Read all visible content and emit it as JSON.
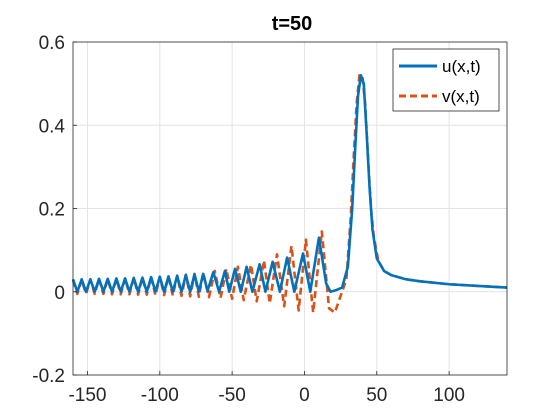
{
  "chart_data": {
    "type": "line",
    "title": "t=50",
    "xlabel": "",
    "ylabel": "",
    "xlim": [
      -160,
      140
    ],
    "ylim": [
      -0.2,
      0.6
    ],
    "xticks": [
      -150,
      -100,
      -50,
      0,
      50,
      100
    ],
    "xtick_labels": [
      "-150",
      "-100",
      "-50",
      "0",
      "50",
      "100"
    ],
    "yticks": [
      -0.2,
      0,
      0.2,
      0.4,
      0.6
    ],
    "ytick_labels": [
      "-0.2",
      "0",
      "0.2",
      "0.4",
      "0.6"
    ],
    "grid": true,
    "legend_position": "top-right",
    "series": [
      {
        "name": "u(x,t)",
        "color": "#0072BD",
        "style": "solid",
        "values": [
          [
            -160,
            0.03
          ],
          [
            -157,
            0.0
          ],
          [
            -154,
            0.03
          ],
          [
            -151,
            0.0
          ],
          [
            -148,
            0.03
          ],
          [
            -145,
            0.0
          ],
          [
            -142,
            0.031
          ],
          [
            -139,
            0.0
          ],
          [
            -136,
            0.031
          ],
          [
            -133,
            0.0
          ],
          [
            -130,
            0.032
          ],
          [
            -127,
            0.0
          ],
          [
            -124,
            0.032
          ],
          [
            -121,
            0.0
          ],
          [
            -118,
            0.033
          ],
          [
            -115,
            0.0
          ],
          [
            -112,
            0.034
          ],
          [
            -109,
            0.0
          ],
          [
            -106,
            0.035
          ],
          [
            -103,
            0.0
          ],
          [
            -100,
            0.036
          ],
          [
            -97,
            0.0
          ],
          [
            -94,
            0.037
          ],
          [
            -91,
            0.0
          ],
          [
            -88,
            0.038
          ],
          [
            -85,
            0.0
          ],
          [
            -82,
            0.04
          ],
          [
            -79,
            0.0
          ],
          [
            -76,
            0.042
          ],
          [
            -73,
            0.0
          ],
          [
            -70,
            0.043
          ],
          [
            -67,
            0.002
          ],
          [
            -63,
            0.047
          ],
          [
            -59,
            0.0
          ],
          [
            -55,
            0.05
          ],
          [
            -52,
            0.0
          ],
          [
            -48,
            0.055
          ],
          [
            -44,
            0.0
          ],
          [
            -40,
            0.06
          ],
          [
            -36,
            0.0
          ],
          [
            -31,
            0.066
          ],
          [
            -27,
            0.0
          ],
          [
            -22,
            0.072
          ],
          [
            -17,
            0.0
          ],
          [
            -12,
            0.082
          ],
          [
            -7,
            0.0
          ],
          [
            -1,
            0.092
          ],
          [
            4,
            0.0
          ],
          [
            10,
            0.13
          ],
          [
            15,
            0.02
          ],
          [
            18,
            0.0
          ],
          [
            22,
            0.004
          ],
          [
            26,
            0.01
          ],
          [
            30,
            0.06
          ],
          [
            33,
            0.2
          ],
          [
            35,
            0.34
          ],
          [
            37,
            0.47
          ],
          [
            39,
            0.52
          ],
          [
            41,
            0.5
          ],
          [
            43,
            0.38
          ],
          [
            45,
            0.25
          ],
          [
            47,
            0.15
          ],
          [
            50,
            0.08
          ],
          [
            55,
            0.05
          ],
          [
            60,
            0.04
          ],
          [
            70,
            0.03
          ],
          [
            80,
            0.025
          ],
          [
            100,
            0.018
          ],
          [
            120,
            0.014
          ],
          [
            140,
            0.01
          ]
        ]
      },
      {
        "name": "v(x,t)",
        "color": "#D95319",
        "style": "dashed",
        "values": [
          [
            -160,
            0.028
          ],
          [
            -157,
            -0.005
          ],
          [
            -154,
            0.028
          ],
          [
            -151,
            -0.005
          ],
          [
            -148,
            0.029
          ],
          [
            -145,
            -0.005
          ],
          [
            -142,
            0.03
          ],
          [
            -139,
            -0.005
          ],
          [
            -136,
            0.03
          ],
          [
            -133,
            -0.006
          ],
          [
            -130,
            0.031
          ],
          [
            -127,
            -0.006
          ],
          [
            -124,
            0.032
          ],
          [
            -121,
            -0.006
          ],
          [
            -118,
            0.033
          ],
          [
            -115,
            -0.007
          ],
          [
            -112,
            0.034
          ],
          [
            -109,
            -0.007
          ],
          [
            -106,
            0.035
          ],
          [
            -103,
            -0.008
          ],
          [
            -100,
            0.036
          ],
          [
            -97,
            -0.008
          ],
          [
            -94,
            0.037
          ],
          [
            -91,
            -0.009
          ],
          [
            -88,
            0.039
          ],
          [
            -85,
            -0.01
          ],
          [
            -82,
            0.041
          ],
          [
            -79,
            -0.011
          ],
          [
            -76,
            0.043
          ],
          [
            -73,
            -0.012
          ],
          [
            -70,
            0.045
          ],
          [
            -66,
            -0.013
          ],
          [
            -62,
            0.05
          ],
          [
            -58,
            -0.015
          ],
          [
            -54,
            0.055
          ],
          [
            -50,
            -0.017
          ],
          [
            -46,
            0.06
          ],
          [
            -42,
            -0.02
          ],
          [
            -37,
            0.065
          ],
          [
            -33,
            -0.023
          ],
          [
            -28,
            0.075
          ],
          [
            -24,
            -0.028
          ],
          [
            -19,
            0.09
          ],
          [
            -14,
            -0.035
          ],
          [
            -9,
            0.11
          ],
          [
            -4,
            -0.045
          ],
          [
            1,
            0.125
          ],
          [
            6,
            -0.05
          ],
          [
            12,
            0.145
          ],
          [
            17,
            -0.04
          ],
          [
            21,
            -0.05
          ],
          [
            25,
            -0.01
          ],
          [
            29,
            0.03
          ],
          [
            32,
            0.18
          ],
          [
            34,
            0.32
          ],
          [
            36,
            0.45
          ],
          [
            38,
            0.52
          ],
          [
            40,
            0.52
          ],
          [
            42,
            0.45
          ],
          [
            44,
            0.32
          ],
          [
            46,
            0.2
          ],
          [
            48,
            0.13
          ],
          [
            51,
            0.075
          ],
          [
            55,
            0.05
          ],
          [
            60,
            0.04
          ],
          [
            70,
            0.03
          ],
          [
            80,
            0.025
          ],
          [
            100,
            0.018
          ],
          [
            120,
            0.014
          ],
          [
            140,
            0.01
          ]
        ]
      }
    ]
  }
}
